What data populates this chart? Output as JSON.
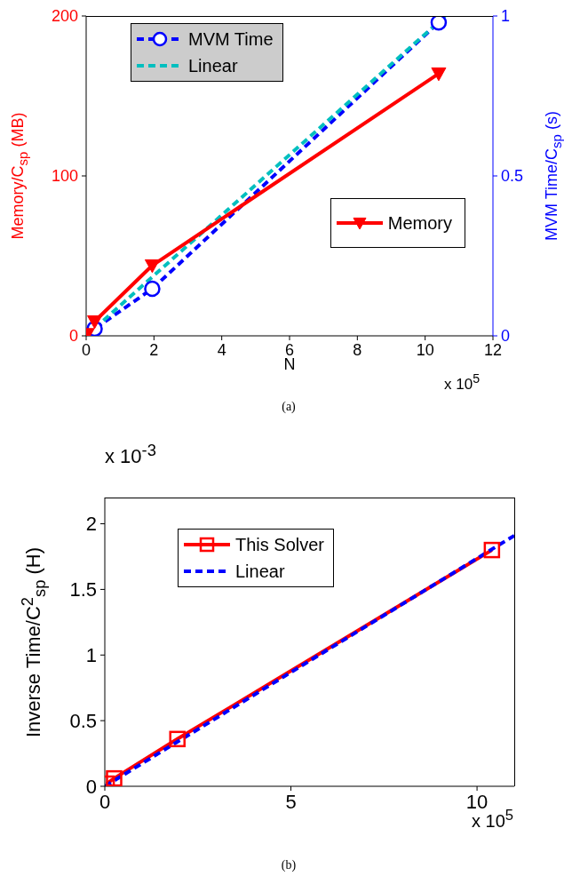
{
  "chart_data": [
    {
      "type": "line",
      "xlabel": "N",
      "ylabel": "Memory/C$_{sp}$ (MB)",
      "y2label": "MVM Time/C$_{sp}$ (s)",
      "xlim": [
        0,
        12
      ],
      "xticks": [
        0,
        2,
        4,
        6,
        8,
        10,
        12
      ],
      "ylim": [
        0,
        200
      ],
      "yticks": [
        0,
        100,
        200
      ],
      "y2lim": [
        0,
        1
      ],
      "y2ticks": [
        0,
        0.5,
        1
      ],
      "legend": "top left",
      "series": [
        {
          "name": "MVM Time",
          "color": "#0000ff",
          "axis": "y2",
          "marker": "circle",
          "line_style": "dashed",
          "x": [
            0.03,
            0.25,
            1.95,
            10.4
          ],
          "values": [
            0.0,
            0.022,
            0.147,
            0.98
          ]
        },
        {
          "name": "Linear",
          "color": "#00bfbf",
          "axis": "y2",
          "marker": "none",
          "line_style": "dashed",
          "x": [
            0,
            10.6
          ],
          "values": [
            0,
            1
          ]
        },
        {
          "name": "Memory",
          "color": "#ff0000",
          "marker": "triangle",
          "line_style": "solid",
          "x": [
            0.03,
            0.25,
            1.95,
            10.4
          ],
          "values": [
            1,
            9,
            44,
            164
          ]
        }
      ],
      "annotations": [
        "x 10$^{5}$",
        "(a)"
      ]
    },
    {
      "type": "line",
      "ylabel": "Inverse Time/C$^{2}$$_{sp}$ (H)",
      "xlim": [
        0,
        11
      ],
      "xticks": [
        0,
        5,
        10
      ],
      "ylim": [
        0,
        2.2
      ],
      "yticks": [
        0,
        0.5,
        1,
        1.5,
        2
      ],
      "legend": "top left",
      "series": [
        {
          "name": "This Solver",
          "color": "#ff0000",
          "marker": "square",
          "line_style": "solid",
          "x": [
            0.05,
            0.25,
            1.95,
            10.4
          ],
          "values": [
            0.02,
            0.06,
            0.36,
            1.8
          ]
        },
        {
          "name": "Linear",
          "color": "#0000ff",
          "marker": "none",
          "line_style": "dashed",
          "x": [
            0,
            11
          ],
          "values": [
            0,
            1.91
          ]
        }
      ],
      "annotations": [
        "x 10$^{-3}$",
        "x 10$^{5}$",
        "(b)"
      ]
    }
  ]
}
